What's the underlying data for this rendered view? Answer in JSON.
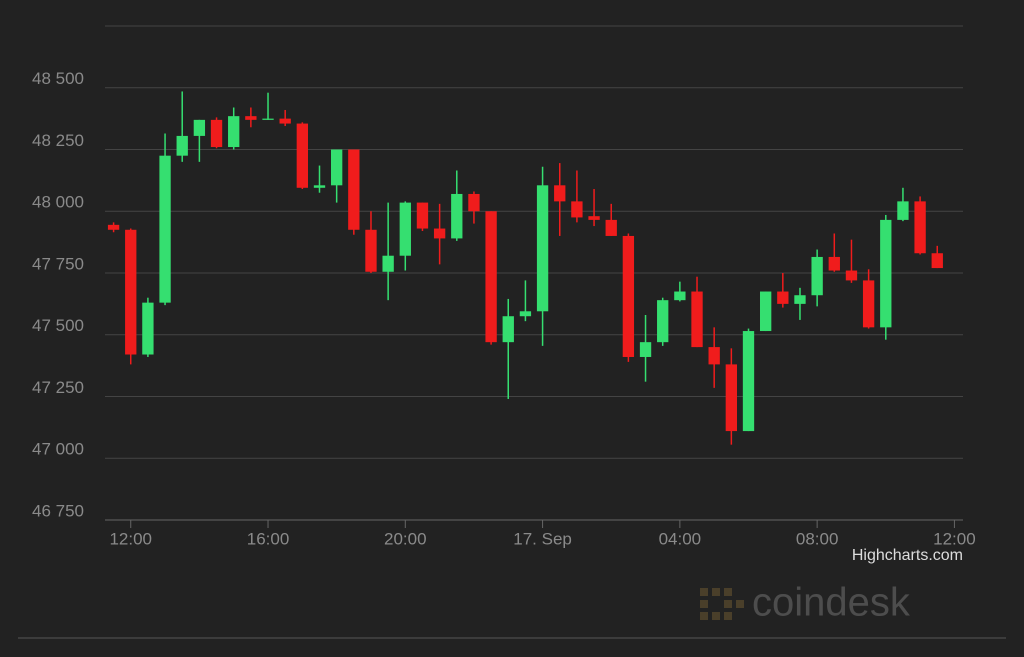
{
  "chart_data": {
    "type": "candlestick",
    "x": [
      11.5,
      12,
      12.5,
      13,
      13.5,
      14,
      14.5,
      15,
      15.5,
      16,
      16.5,
      17,
      17.5,
      18,
      18.5,
      19,
      19.5,
      20,
      20.5,
      21,
      21.5,
      22,
      22.5,
      23,
      23.5,
      24,
      24.5,
      25,
      25.5,
      26,
      26.5,
      27,
      27.5,
      28,
      28.5,
      29,
      29.5,
      30,
      30.5,
      31,
      31.5,
      32,
      32.5,
      33,
      33.5,
      34,
      34.5,
      35,
      35.5
    ],
    "open": [
      47945,
      47925,
      47420,
      47630,
      48225,
      48305,
      48370,
      48260,
      48385,
      48370,
      48375,
      48355,
      48095,
      48105,
      48250,
      47925,
      47755,
      47820,
      48035,
      47930,
      47890,
      48070,
      48000,
      47470,
      47575,
      47595,
      48105,
      48040,
      47980,
      47965,
      47900,
      47410,
      47470,
      47640,
      47675,
      47450,
      47380,
      47110,
      47515,
      47675,
      47625,
      47660,
      47815,
      47760,
      47720,
      47530,
      47965,
      48040,
      47830
    ],
    "high": [
      47955,
      47930,
      47650,
      48315,
      48485,
      48370,
      48380,
      48420,
      48420,
      48480,
      48410,
      48360,
      48185,
      48250,
      48250,
      48000,
      48035,
      48040,
      48035,
      48030,
      48165,
      48080,
      48000,
      47645,
      47720,
      48180,
      48195,
      48165,
      48090,
      48030,
      47910,
      47580,
      47650,
      47715,
      47735,
      47530,
      47445,
      47525,
      47675,
      47750,
      47690,
      47845,
      47910,
      47885,
      47765,
      47985,
      48095,
      48060,
      47860
    ],
    "low": [
      47915,
      47380,
      47410,
      47620,
      48200,
      48200,
      48255,
      48250,
      48340,
      48370,
      48345,
      48090,
      48075,
      48035,
      47905,
      47750,
      47640,
      47760,
      47920,
      47785,
      47880,
      47950,
      47460,
      47240,
      47555,
      47455,
      47900,
      47955,
      47940,
      47900,
      47390,
      47310,
      47455,
      47635,
      47450,
      47285,
      47055,
      47110,
      47515,
      47610,
      47560,
      47615,
      47755,
      47710,
      47525,
      47480,
      47960,
      47825,
      47770
    ],
    "close": [
      47925,
      47420,
      47630,
      48225,
      48305,
      48370,
      48260,
      48385,
      48370,
      48375,
      48355,
      48095,
      48105,
      48250,
      47925,
      47755,
      47820,
      48035,
      47930,
      47890,
      48070,
      48000,
      47470,
      47575,
      47595,
      48105,
      48040,
      47975,
      47965,
      47900,
      47410,
      47470,
      47640,
      47675,
      47450,
      47380,
      47110,
      47515,
      47675,
      47625,
      47660,
      47815,
      47760,
      47720,
      47530,
      47965,
      48040,
      47830,
      47770
    ],
    "up_color": "#35df70",
    "down_color": "#f01c1c",
    "xlim": [
      11.25,
      36.25
    ],
    "xticks": [
      {
        "value": 12,
        "label": "12:00"
      },
      {
        "value": 16,
        "label": "16:00"
      },
      {
        "value": 20,
        "label": "20:00"
      },
      {
        "value": 24,
        "label": "17. Sep"
      },
      {
        "value": 28,
        "label": "04:00"
      },
      {
        "value": 32,
        "label": "08:00"
      },
      {
        "value": 36,
        "label": "12:00"
      }
    ],
    "ylim": [
      46750,
      48750
    ],
    "yticks": [
      {
        "value": 46750,
        "label": "46 750"
      },
      {
        "value": 47000,
        "label": "47 000"
      },
      {
        "value": 47250,
        "label": "47 250"
      },
      {
        "value": 47500,
        "label": "47 500"
      },
      {
        "value": 47750,
        "label": "47 750"
      },
      {
        "value": 48000,
        "label": "48 000"
      },
      {
        "value": 48250,
        "label": "48 250"
      },
      {
        "value": 48500,
        "label": "48 500"
      }
    ],
    "grid": true
  },
  "credits": "Highcharts.com",
  "watermark": "coindesk"
}
